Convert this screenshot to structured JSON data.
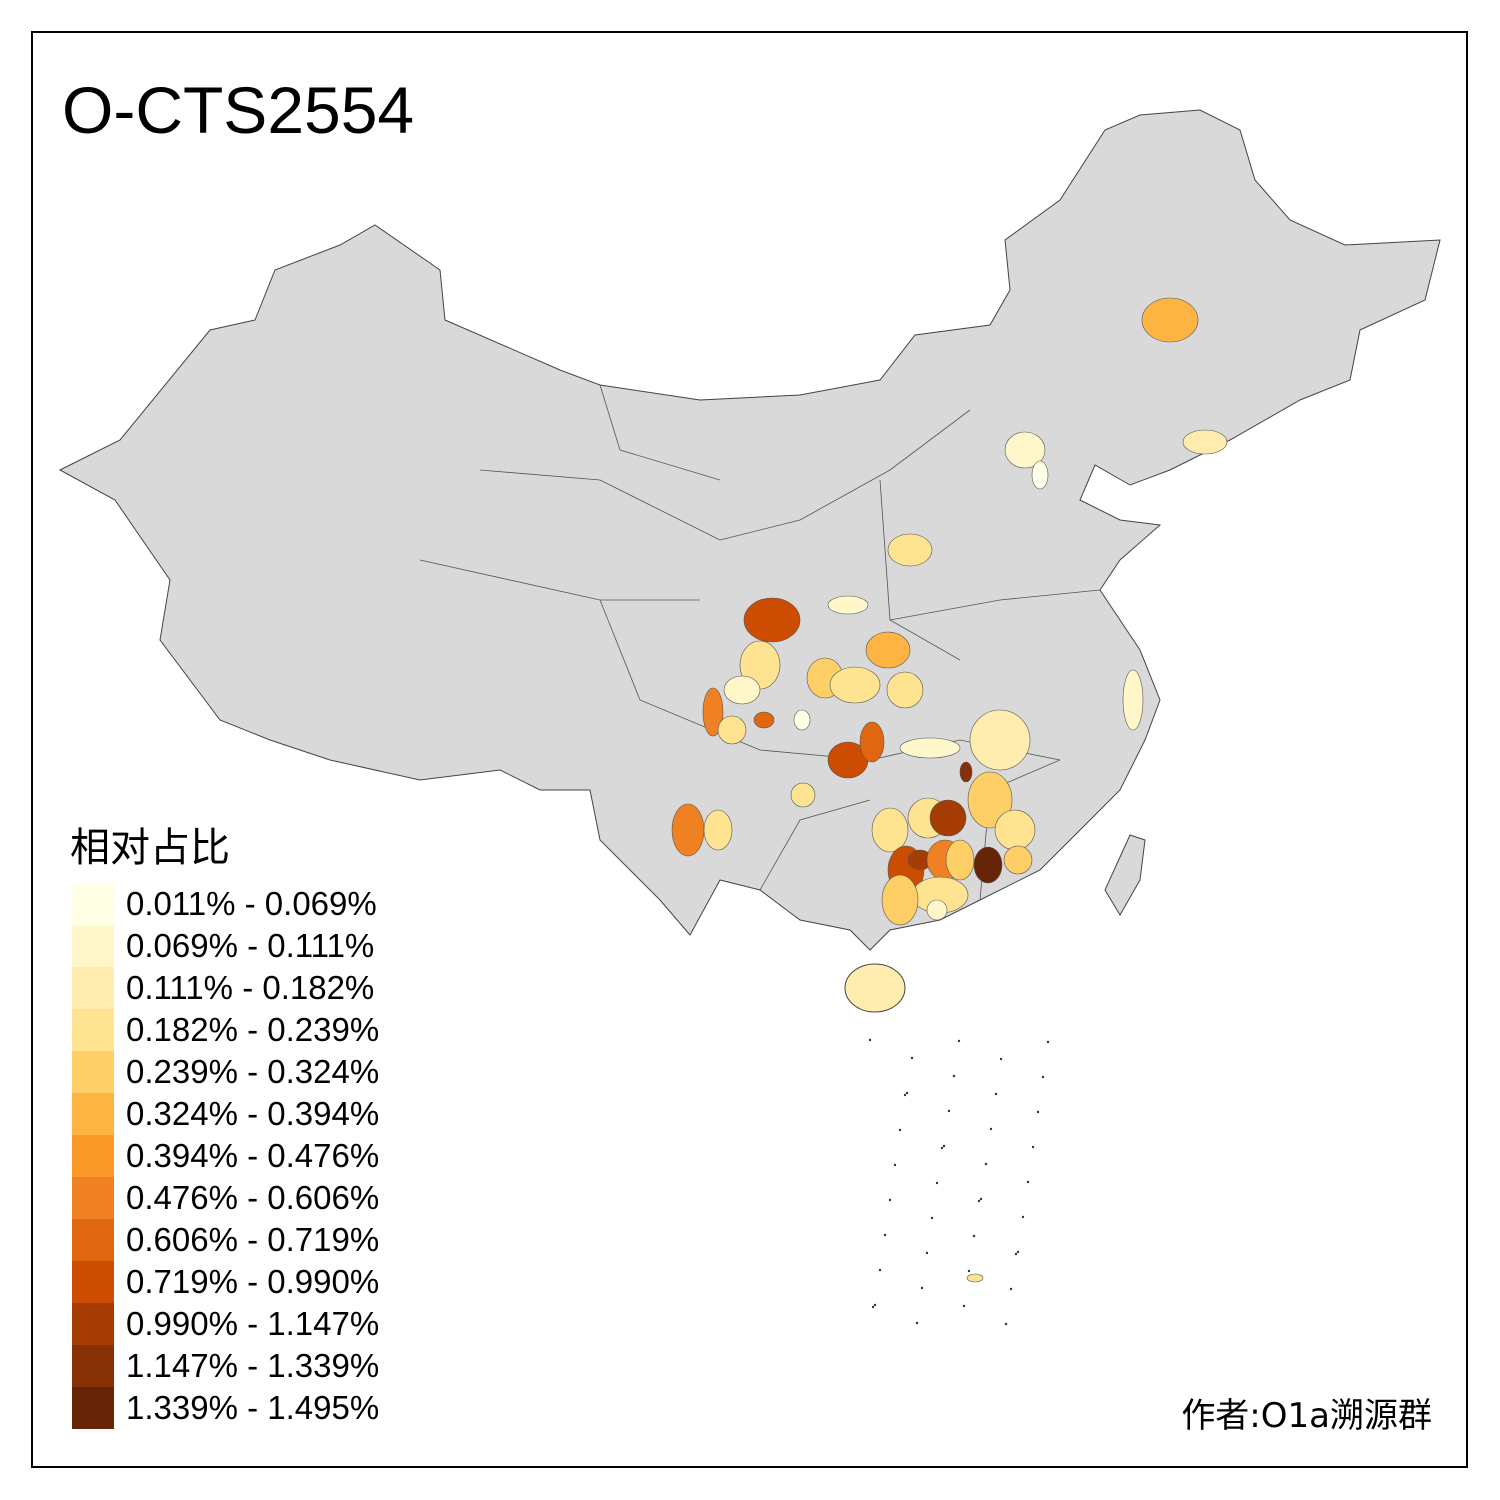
{
  "title": "O-CTS2554",
  "legend": {
    "title": "相对占比",
    "items": [
      {
        "label": "0.011% - 0.069%",
        "color": "#FFFFE5"
      },
      {
        "label": "0.069% - 0.111%",
        "color": "#FFF7C9"
      },
      {
        "label": "0.111% - 0.182%",
        "color": "#FEEDAE"
      },
      {
        "label": "0.182% - 0.239%",
        "color": "#FEE391"
      },
      {
        "label": "0.239% - 0.324%",
        "color": "#FECF66"
      },
      {
        "label": "0.324% - 0.394%",
        "color": "#FDB443"
      },
      {
        "label": "0.394% - 0.476%",
        "color": "#FB9A29"
      },
      {
        "label": "0.476% - 0.606%",
        "color": "#F08122"
      },
      {
        "label": "0.606% - 0.719%",
        "color": "#E0660F"
      },
      {
        "label": "0.719% - 0.990%",
        "color": "#CC4C02"
      },
      {
        "label": "0.990% - 1.147%",
        "color": "#A53C04"
      },
      {
        "label": "1.147% - 1.339%",
        "color": "#863005"
      },
      {
        "label": "1.339% - 1.495%",
        "color": "#662506"
      }
    ]
  },
  "no_data_color": "#D9D9D9",
  "author": "作者:O1a溯源群"
}
